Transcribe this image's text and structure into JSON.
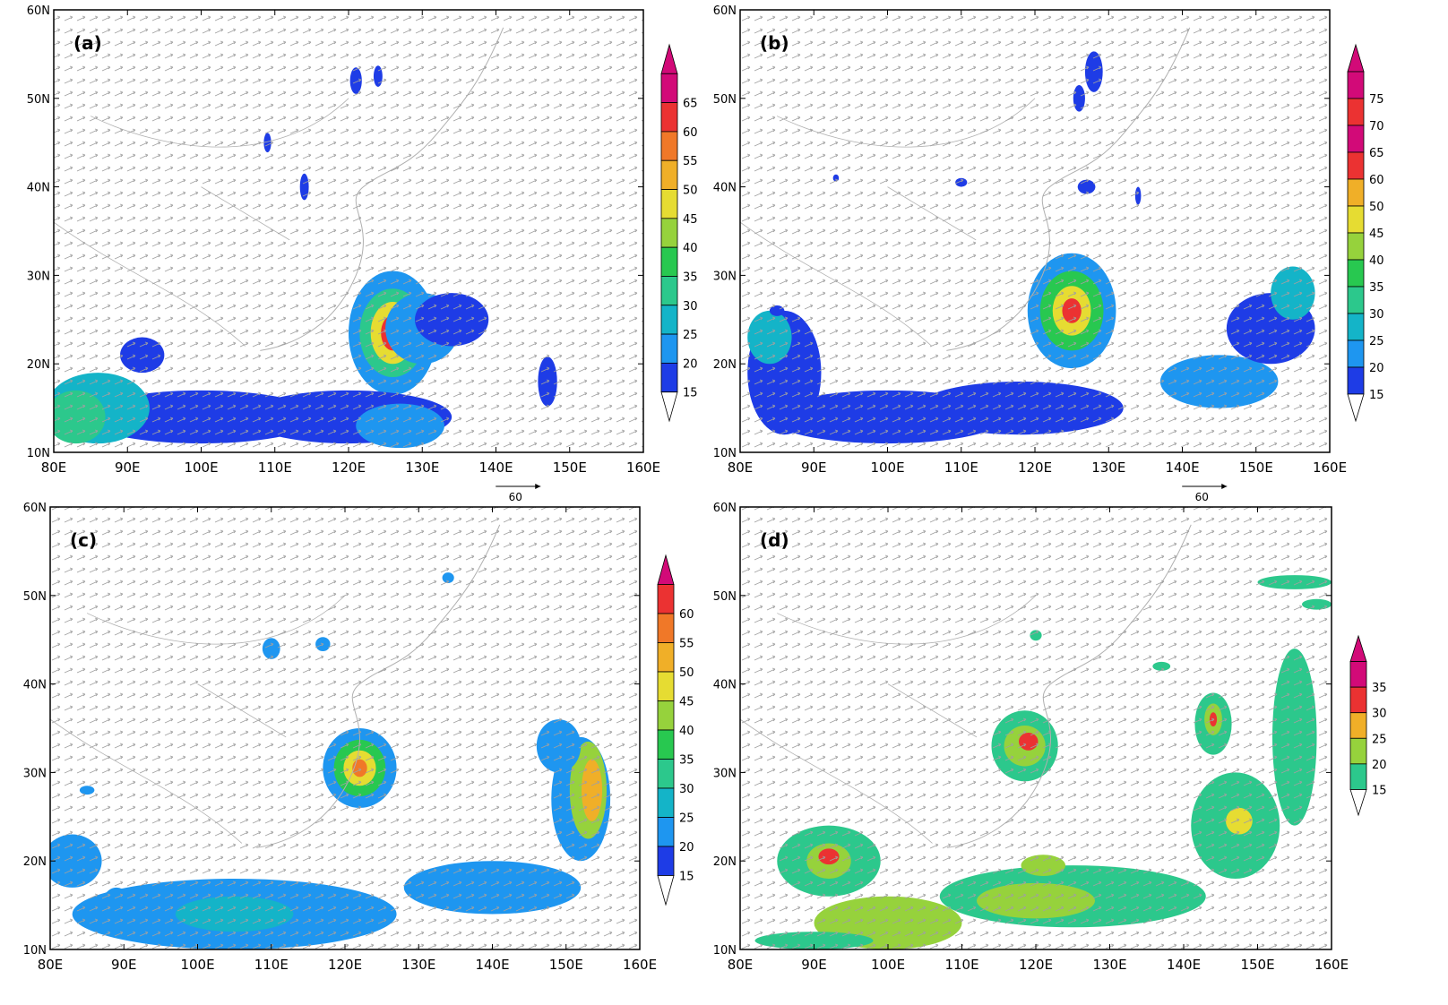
{
  "panels": [
    {
      "label": "(a)",
      "x_ticks": [
        "80E",
        "90E",
        "100E",
        "110E",
        "120E",
        "130E",
        "140E",
        "150E",
        "160E"
      ],
      "y_ticks": [
        "10N",
        "20N",
        "30N",
        "40N",
        "50N",
        "60N"
      ],
      "colorbar_ticks": [
        "15",
        "20",
        "25",
        "30",
        "35",
        "40",
        "45",
        "50",
        "55",
        "60",
        "65"
      ],
      "vector_ref": "60"
    },
    {
      "label": "(b)",
      "x_ticks": [
        "80E",
        "90E",
        "100E",
        "110E",
        "120E",
        "130E",
        "140E",
        "150E",
        "160E"
      ],
      "y_ticks": [
        "10N",
        "20N",
        "30N",
        "40N",
        "50N",
        "60N"
      ],
      "colorbar_ticks": [
        "15",
        "20",
        "25",
        "30",
        "35",
        "40",
        "45",
        "50",
        "60",
        "65",
        "70",
        "75"
      ],
      "vector_ref": "60"
    },
    {
      "label": "(c)",
      "x_ticks": [
        "80E",
        "90E",
        "100E",
        "110E",
        "120E",
        "130E",
        "140E",
        "150E",
        "160E"
      ],
      "y_ticks": [
        "10N",
        "20N",
        "30N",
        "40N",
        "50N",
        "60N"
      ],
      "colorbar_ticks": [
        "15",
        "20",
        "25",
        "30",
        "35",
        "40",
        "45",
        "50",
        "55",
        "60"
      ],
      "vector_ref": ""
    },
    {
      "label": "(d)",
      "x_ticks": [
        "80E",
        "90E",
        "100E",
        "110E",
        "120E",
        "130E",
        "140E",
        "150E",
        "160E"
      ],
      "y_ticks": [
        "10N",
        "20N",
        "30N",
        "40N",
        "50N",
        "60N"
      ],
      "colorbar_ticks": [
        "15",
        "20",
        "25",
        "30",
        "35"
      ],
      "vector_ref": ""
    }
  ],
  "colors": {
    "c15": "#1e3ce6",
    "c20": "#1e96f0",
    "c25": "#14b4c8",
    "c30": "#2cc88c",
    "c35": "#28c850",
    "c40": "#96d23c",
    "c45": "#e6dc32",
    "c50": "#f0af28",
    "c55": "#f07828",
    "c60": "#eb3232",
    "c65": "#d20a78",
    "vector": "#a0a0a0",
    "coast": "#b0b0b0"
  }
}
